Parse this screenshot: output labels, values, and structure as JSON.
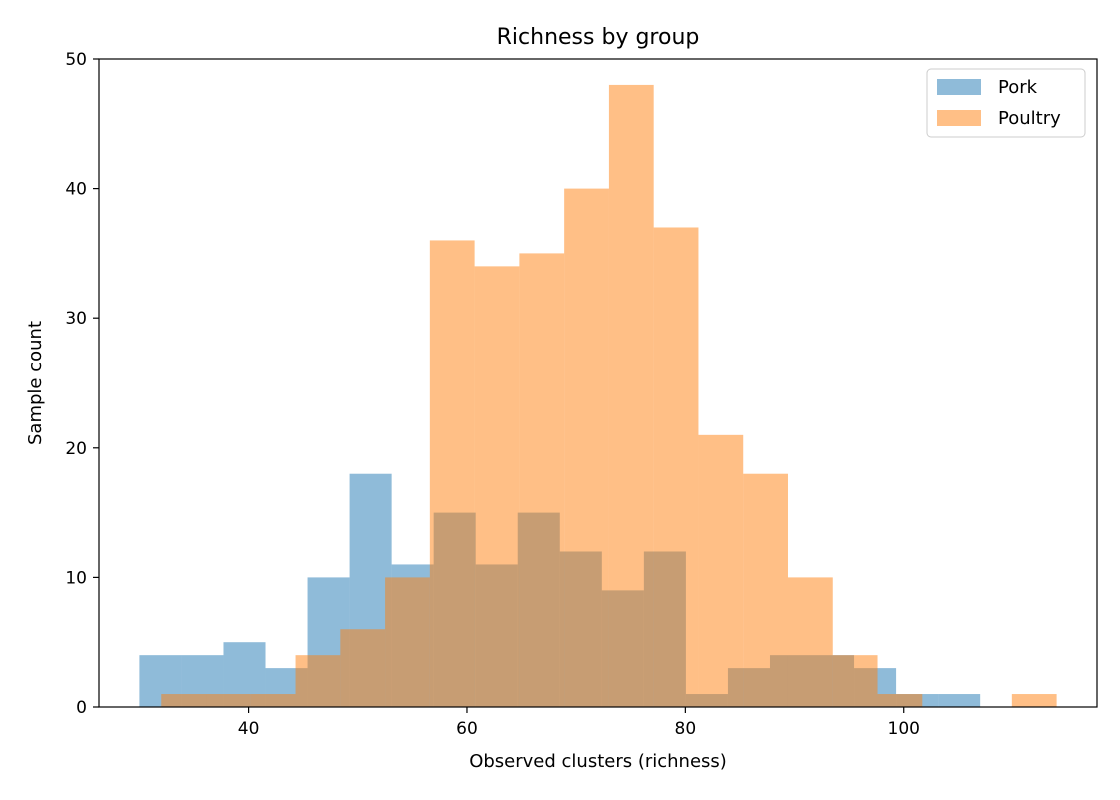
{
  "chart_data": {
    "type": "histogram",
    "title": "Richness by group",
    "xlabel": "Observed clusters (richness)",
    "ylabel": "Sample count",
    "xlim": [
      26.3,
      117.7
    ],
    "ylim": [
      0,
      50
    ],
    "xticks": [
      40,
      60,
      80,
      100
    ],
    "yticks": [
      0,
      10,
      20,
      30,
      40,
      50
    ],
    "legend_position": "upper right",
    "grid": false,
    "series": [
      {
        "name": "Pork",
        "color": "#1f77b4",
        "alpha": 0.5,
        "bins": [
          {
            "x0": 30.0,
            "x1": 33.85,
            "count": 4
          },
          {
            "x0": 33.85,
            "x1": 37.7,
            "count": 4
          },
          {
            "x0": 37.7,
            "x1": 41.55,
            "count": 5
          },
          {
            "x0": 41.55,
            "x1": 45.4,
            "count": 3
          },
          {
            "x0": 45.4,
            "x1": 49.25,
            "count": 10
          },
          {
            "x0": 49.25,
            "x1": 53.1,
            "count": 18
          },
          {
            "x0": 53.1,
            "x1": 56.95,
            "count": 11
          },
          {
            "x0": 56.95,
            "x1": 60.8,
            "count": 15
          },
          {
            "x0": 60.8,
            "x1": 64.65,
            "count": 11
          },
          {
            "x0": 64.65,
            "x1": 68.5,
            "count": 15
          },
          {
            "x0": 68.5,
            "x1": 72.35,
            "count": 12
          },
          {
            "x0": 72.35,
            "x1": 76.2,
            "count": 9
          },
          {
            "x0": 76.2,
            "x1": 80.05,
            "count": 12
          },
          {
            "x0": 80.05,
            "x1": 83.9,
            "count": 1
          },
          {
            "x0": 83.9,
            "x1": 87.75,
            "count": 3
          },
          {
            "x0": 87.75,
            "x1": 91.6,
            "count": 4
          },
          {
            "x0": 91.6,
            "x1": 95.45,
            "count": 4
          },
          {
            "x0": 95.45,
            "x1": 99.3,
            "count": 3
          },
          {
            "x0": 99.3,
            "x1": 103.15,
            "count": 1
          },
          {
            "x0": 103.15,
            "x1": 107.0,
            "count": 1
          }
        ]
      },
      {
        "name": "Poultry",
        "color": "#ff7f0e",
        "alpha": 0.5,
        "bins": [
          {
            "x0": 32.0,
            "x1": 36.1,
            "count": 1
          },
          {
            "x0": 36.1,
            "x1": 40.2,
            "count": 1
          },
          {
            "x0": 40.2,
            "x1": 44.3,
            "count": 1
          },
          {
            "x0": 44.3,
            "x1": 48.4,
            "count": 4
          },
          {
            "x0": 48.4,
            "x1": 52.5,
            "count": 6
          },
          {
            "x0": 52.5,
            "x1": 56.6,
            "count": 10
          },
          {
            "x0": 56.6,
            "x1": 60.7,
            "count": 36
          },
          {
            "x0": 60.7,
            "x1": 64.8,
            "count": 34
          },
          {
            "x0": 64.8,
            "x1": 68.9,
            "count": 35
          },
          {
            "x0": 68.9,
            "x1": 73.0,
            "count": 40
          },
          {
            "x0": 73.0,
            "x1": 77.1,
            "count": 48
          },
          {
            "x0": 77.1,
            "x1": 81.2,
            "count": 37
          },
          {
            "x0": 81.2,
            "x1": 85.3,
            "count": 21
          },
          {
            "x0": 85.3,
            "x1": 89.4,
            "count": 18
          },
          {
            "x0": 89.4,
            "x1": 93.5,
            "count": 10
          },
          {
            "x0": 93.5,
            "x1": 97.6,
            "count": 4
          },
          {
            "x0": 97.6,
            "x1": 101.7,
            "count": 1
          },
          {
            "x0": 101.7,
            "x1": 105.8,
            "count": 0
          },
          {
            "x0": 105.8,
            "x1": 109.9,
            "count": 0
          },
          {
            "x0": 109.9,
            "x1": 114.0,
            "count": 1
          }
        ]
      }
    ]
  }
}
